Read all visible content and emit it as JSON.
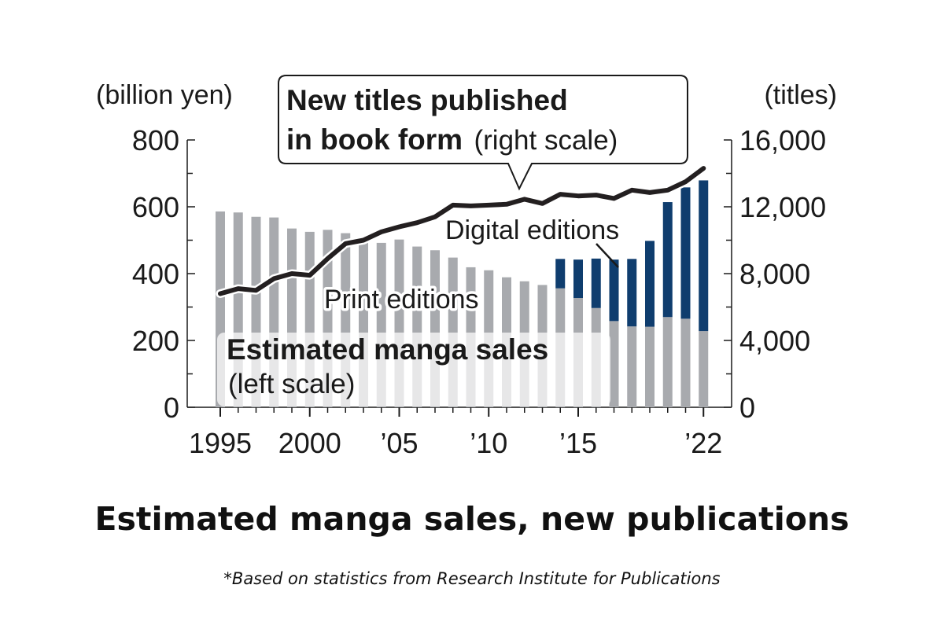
{
  "chart_data": {
    "type": "bar",
    "title": "Estimated manga sales, new publications",
    "footnote": "*Based on statistics from Research Institute for Publications",
    "left_axis": {
      "unit": "(billion yen)",
      "ticks": [
        "0",
        "200",
        "400",
        "600",
        "800"
      ],
      "ylim": [
        0,
        800
      ]
    },
    "right_axis": {
      "unit": "(titles)",
      "ticks": [
        "0",
        "4,000",
        "8,000",
        "12,000",
        "16,000"
      ],
      "ylim": [
        0,
        16000
      ]
    },
    "x_tick_labels": [
      {
        "year": 1995,
        "label": "1995"
      },
      {
        "year": 2000,
        "label": "2000"
      },
      {
        "year": 2005,
        "label": "’05"
      },
      {
        "year": 2010,
        "label": "’10"
      },
      {
        "year": 2015,
        "label": "’15"
      },
      {
        "year": 2022,
        "label": "’22"
      }
    ],
    "categories": [
      1995,
      1996,
      1997,
      1998,
      1999,
      2000,
      2001,
      2002,
      2003,
      2004,
      2005,
      2006,
      2007,
      2008,
      2009,
      2010,
      2011,
      2012,
      2013,
      2014,
      2015,
      2016,
      2017,
      2018,
      2019,
      2020,
      2021,
      2022
    ],
    "series": [
      {
        "name": "Print editions",
        "kind": "bar",
        "axis": "left",
        "color": "#a8aaae",
        "values": [
          586,
          583,
          570,
          568,
          535,
          525,
          531,
          521,
          498,
          492,
          502,
          481,
          470,
          448,
          419,
          410,
          389,
          377,
          366,
          356,
          327,
          297,
          258,
          242,
          241,
          270,
          265,
          228
        ]
      },
      {
        "name": "Digital editions",
        "kind": "bar",
        "axis": "left",
        "color": "#0f3d6e",
        "values": [
          0,
          0,
          0,
          0,
          0,
          0,
          0,
          0,
          0,
          0,
          0,
          0,
          0,
          0,
          0,
          0,
          0,
          0,
          0,
          88,
          115,
          148,
          184,
          202,
          257,
          344,
          393,
          451
        ]
      },
      {
        "name": "New titles published in book form",
        "kind": "line",
        "axis": "right",
        "color": "#231f20",
        "values": [
          6800,
          7100,
          7000,
          7700,
          8000,
          7900,
          8900,
          9800,
          10000,
          10500,
          10800,
          11050,
          11400,
          12100,
          12050,
          12100,
          12150,
          12450,
          12200,
          12750,
          12650,
          12700,
          12500,
          13000,
          12850,
          13000,
          13500,
          14300
        ]
      }
    ],
    "annotations": {
      "line_callout_bold_1": "New titles published",
      "line_callout_bold_2": "in book form",
      "line_callout_note": "(right scale)",
      "digital_label": "Digital editions",
      "print_label": "Print editions",
      "sales_label_bold": "Estimated manga sales",
      "sales_label_note": "(left scale)"
    },
    "grid": false,
    "legend": "none"
  }
}
